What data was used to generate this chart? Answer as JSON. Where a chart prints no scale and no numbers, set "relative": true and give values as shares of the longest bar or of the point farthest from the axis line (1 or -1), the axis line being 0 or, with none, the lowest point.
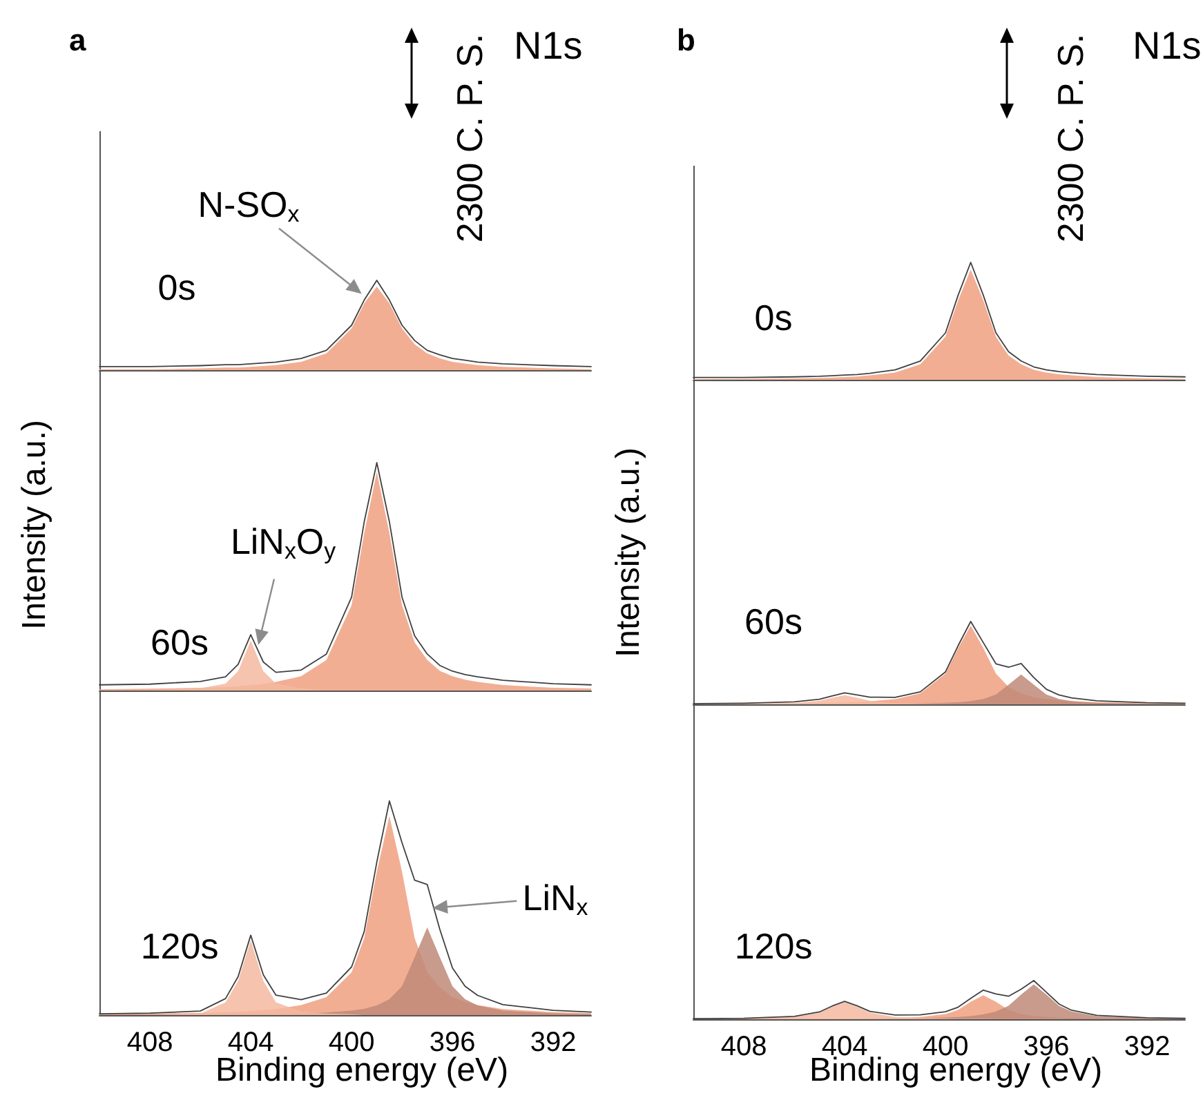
{
  "chart_data": [
    {
      "type": "area",
      "relative": true,
      "title": "a",
      "subtitle": "N1s",
      "xlim": [
        410,
        390.5
      ],
      "xticks": [
        408,
        404,
        400,
        396,
        392
      ],
      "tick_labels": false,
      "annotations": [
        "0s",
        {
          "text": "N-SO$_{x}$",
          "x": 399.6,
          "y": 0.85
        },
        "2300 C. P. S."
      ],
      "x": [
        410,
        408,
        406,
        405,
        404.5,
        404,
        403.5,
        403,
        402,
        401,
        400,
        399.5,
        399,
        398.5,
        398,
        397.5,
        397,
        396.5,
        396,
        395.5,
        395,
        394,
        392,
        390.5
      ],
      "series": [
        {
          "color": "#f0a080",
          "values": [
            0.009,
            0.009,
            0.019,
            0.028,
            0.028,
            0.037,
            0.047,
            0.056,
            0.093,
            0.186,
            0.465,
            0.744,
            0.93,
            0.744,
            0.465,
            0.288,
            0.186,
            0.13,
            0.093,
            0.074,
            0.056,
            0.037,
            0.019,
            0.009
          ]
        },
        {
          "type": "line",
          "color": "#404040",
          "values": [
            0.04,
            0.04,
            0.05,
            0.06,
            0.06,
            0.07,
            0.08,
            0.09,
            0.13,
            0.22,
            0.5,
            0.78,
            1,
            0.78,
            0.5,
            0.33,
            0.22,
            0.17,
            0.13,
            0.11,
            0.09,
            0.07,
            0.05,
            0.04
          ]
        }
      ]
    },
    {
      "type": "area",
      "relative": true,
      "ylabel": "Intensity (a.u.)",
      "xlim": [
        410,
        390.5
      ],
      "xticks": [
        408,
        404,
        400,
        396,
        392
      ],
      "tick_labels": false,
      "annotations": [
        "60s",
        {
          "text": "LiN$_{x}$O$_{y}$",
          "x": 403.7,
          "y": 0.2
        }
      ],
      "x": [
        410,
        408,
        406,
        405,
        404.5,
        404,
        403.5,
        403,
        402,
        401,
        400,
        399.5,
        399,
        398.5,
        398,
        397.5,
        397,
        396.5,
        396,
        395.5,
        395,
        394,
        392,
        390.5
      ],
      "series": [
        {
          "color": "#f0a080",
          "values": [
            0.005,
            0.008,
            0.012,
            0.016,
            0.019,
            0.024,
            0.029,
            0.038,
            0.063,
            0.134,
            0.374,
            0.691,
            0.96,
            0.691,
            0.374,
            0.211,
            0.134,
            0.086,
            0.063,
            0.048,
            0.038,
            0.024,
            0.012,
            0.009
          ]
        },
        {
          "color": "#f4b8a0",
          "values": [
            0,
            0,
            0.01,
            0.03,
            0.085,
            0.22,
            0.085,
            0.03,
            0.01,
            0,
            0,
            0,
            0,
            0,
            0,
            0,
            0,
            0,
            0,
            0,
            0,
            0,
            0,
            0
          ]
        },
        {
          "type": "line",
          "color": "#404040",
          "values": [
            0.025,
            0.028,
            0.04,
            0.06,
            0.115,
            0.245,
            0.125,
            0.08,
            0.09,
            0.16,
            0.41,
            0.74,
            1,
            0.74,
            0.41,
            0.24,
            0.16,
            0.11,
            0.085,
            0.07,
            0.06,
            0.045,
            0.03,
            0.025
          ]
        }
      ]
    },
    {
      "type": "area",
      "relative": true,
      "xlabel": "Binding energy (eV)",
      "xlim": [
        410,
        390.5
      ],
      "xticks": [
        408,
        404,
        400,
        396,
        392
      ],
      "tick_labels": "x",
      "annotations": [
        "120s",
        {
          "text": "LiN$_{x}$",
          "x": 396.8,
          "y": 0.5
        }
      ],
      "x": [
        410,
        408,
        406,
        405,
        404.5,
        404,
        403.5,
        403,
        402,
        401,
        400,
        399.5,
        399,
        398.5,
        398,
        397.5,
        397,
        396.5,
        396,
        395.5,
        395,
        394,
        392,
        390.5
      ],
      "series": [
        {
          "color": "#f0a080",
          "values": [
            0.005,
            0.007,
            0.01,
            0.014,
            0.016,
            0.019,
            0.023,
            0.028,
            0.047,
            0.084,
            0.2,
            0.36,
            0.67,
            0.93,
            0.67,
            0.36,
            0.2,
            0.13,
            0.084,
            0.061,
            0.047,
            0.028,
            0.014,
            0.009
          ]
        },
        {
          "color": "#c08a78",
          "values": [
            0.001,
            0.002,
            0.002,
            0.003,
            0.004,
            0.004,
            0.005,
            0.005,
            0.008,
            0.012,
            0.021,
            0.029,
            0.045,
            0.074,
            0.135,
            0.27,
            0.41,
            0.27,
            0.135,
            0.074,
            0.045,
            0.021,
            0.008,
            0.005
          ]
        },
        {
          "color": "#f4b8a0",
          "values": [
            0,
            0,
            0.007,
            0.06,
            0.16,
            0.35,
            0.16,
            0.06,
            0.017,
            0.007,
            0.004,
            0,
            0,
            0,
            0,
            0,
            0,
            0,
            0,
            0,
            0,
            0,
            0,
            0
          ]
        },
        {
          "type": "line",
          "color": "#404040",
          "values": [
            0.006,
            0.009,
            0.019,
            0.077,
            0.18,
            0.373,
            0.188,
            0.093,
            0.072,
            0.103,
            0.225,
            0.39,
            0.715,
            1,
            0.805,
            0.63,
            0.61,
            0.4,
            0.22,
            0.135,
            0.092,
            0.049,
            0.022,
            0.014
          ]
        }
      ]
    },
    {
      "type": "area",
      "relative": true,
      "title": "b",
      "subtitle": "N1s",
      "xlim": [
        410,
        390.5
      ],
      "xticks": [
        408,
        404,
        400,
        396,
        392
      ],
      "tick_labels": false,
      "annotations": [
        "0s",
        "2300 C. P. S."
      ],
      "x": [
        410,
        408,
        406,
        405,
        404.5,
        404,
        403.5,
        403,
        402,
        401,
        400,
        399.5,
        399,
        398.5,
        398,
        397.5,
        397,
        396.5,
        396,
        395.5,
        395,
        394,
        392,
        390.5
      ],
      "series": [
        {
          "color": "#f0a080",
          "values": [
            0.005,
            0.008,
            0.012,
            0.016,
            0.019,
            0.024,
            0.028,
            0.038,
            0.062,
            0.132,
            0.367,
            0.677,
            0.94,
            0.677,
            0.367,
            0.207,
            0.132,
            0.085,
            0.062,
            0.047,
            0.038,
            0.024,
            0.012,
            0.008
          ]
        },
        {
          "type": "line",
          "color": "#404040",
          "values": [
            0.02,
            0.02,
            0.025,
            0.03,
            0.035,
            0.04,
            0.045,
            0.055,
            0.085,
            0.16,
            0.4,
            0.72,
            1,
            0.72,
            0.4,
            0.24,
            0.16,
            0.11,
            0.085,
            0.07,
            0.06,
            0.045,
            0.03,
            0.025
          ]
        }
      ]
    },
    {
      "type": "area",
      "relative": true,
      "ylabel": "Intensity (a.u.)",
      "xlim": [
        410,
        390.5
      ],
      "xticks": [
        408,
        404,
        400,
        396,
        392
      ],
      "tick_labels": false,
      "annotations": [
        "60s"
      ],
      "x": [
        410,
        408,
        406,
        405,
        404.5,
        404,
        403.5,
        403,
        402,
        401,
        400,
        399.5,
        399,
        398.5,
        398,
        397.5,
        397,
        396.5,
        396,
        395.5,
        395,
        394,
        392,
        390.5
      ],
      "series": [
        {
          "color": "#f0a080",
          "values": [
            0.005,
            0.008,
            0.012,
            0.016,
            0.019,
            0.024,
            0.029,
            0.038,
            0.063,
            0.133,
            0.37,
            0.68,
            0.95,
            0.68,
            0.37,
            0.21,
            0.133,
            0.086,
            0.063,
            0.048,
            0.038,
            0.024,
            0.012,
            0.009
          ]
        },
        {
          "color": "#c08a78",
          "values": [
            0.001,
            0.001,
            0.002,
            0.003,
            0.003,
            0.004,
            0.004,
            0.005,
            0.007,
            0.011,
            0.018,
            0.025,
            0.04,
            0.065,
            0.119,
            0.238,
            0.36,
            0.238,
            0.119,
            0.065,
            0.04,
            0.018,
            0.007,
            0.005
          ]
        },
        {
          "color": "#f4b8a0",
          "values": [
            0.002,
            0.004,
            0.015,
            0.043,
            0.08,
            0.11,
            0.08,
            0.043,
            0.015,
            0.007,
            0.004,
            0.003,
            0.002,
            0,
            0,
            0,
            0,
            0,
            0,
            0,
            0,
            0,
            0,
            0
          ]
        },
        {
          "type": "line",
          "color": "#404040",
          "values": [
            0.008,
            0.013,
            0.03,
            0.062,
            0.102,
            0.138,
            0.113,
            0.086,
            0.085,
            0.151,
            0.392,
            0.708,
            1,
            0.745,
            0.489,
            0.448,
            0.493,
            0.324,
            0.182,
            0.113,
            0.078,
            0.042,
            0.019,
            0.014
          ]
        }
      ]
    },
    {
      "type": "area",
      "relative": true,
      "xlabel": "Binding energy (eV)",
      "xlim": [
        410,
        390.5
      ],
      "xticks": [
        408,
        404,
        400,
        396,
        392
      ],
      "tick_labels": "x",
      "annotations": [
        "120s"
      ],
      "x": [
        410,
        408,
        406,
        405,
        404.5,
        404,
        403.5,
        403,
        402,
        401,
        400,
        399.5,
        399,
        398.5,
        398,
        397.5,
        397,
        396.5,
        396,
        395.5,
        395,
        394,
        392,
        390.5
      ],
      "series": [
        {
          "color": "#f0a080",
          "values": [
            0.003,
            0.005,
            0.007,
            0.009,
            0.011,
            0.013,
            0.015,
            0.019,
            0.031,
            0.056,
            0.133,
            0.24,
            0.45,
            0.62,
            0.45,
            0.24,
            0.133,
            0.087,
            0.056,
            0.041,
            0.031,
            0.019,
            0.009,
            0.006
          ]
        },
        {
          "color": "#c08a78",
          "values": [
            0.004,
            0.005,
            0.007,
            0.009,
            0.009,
            0.01,
            0.011,
            0.013,
            0.019,
            0.027,
            0.045,
            0.06,
            0.081,
            0.126,
            0.2,
            0.35,
            0.64,
            0.9,
            0.64,
            0.35,
            0.2,
            0.081,
            0.027,
            0.015
          ]
        },
        {
          "color": "#f4b8a0",
          "values": [
            0.007,
            0.016,
            0.06,
            0.17,
            0.32,
            0.44,
            0.32,
            0.17,
            0.06,
            0.03,
            0.016,
            0.011,
            0.01,
            0.008,
            0.006,
            0.005,
            0.004,
            0.004,
            0.003,
            0.003,
            0.002,
            0.002,
            0.001,
            0.001
          ]
        },
        {
          "type": "line",
          "color": "#404040",
          "values": [
            0.014,
            0.026,
            0.074,
            0.188,
            0.34,
            0.463,
            0.346,
            0.202,
            0.11,
            0.113,
            0.194,
            0.311,
            0.541,
            0.754,
            0.656,
            0.595,
            0.777,
            1,
            0.7,
            0.394,
            0.233,
            0.102,
            0.037,
            0.022
          ]
        }
      ]
    }
  ]
}
